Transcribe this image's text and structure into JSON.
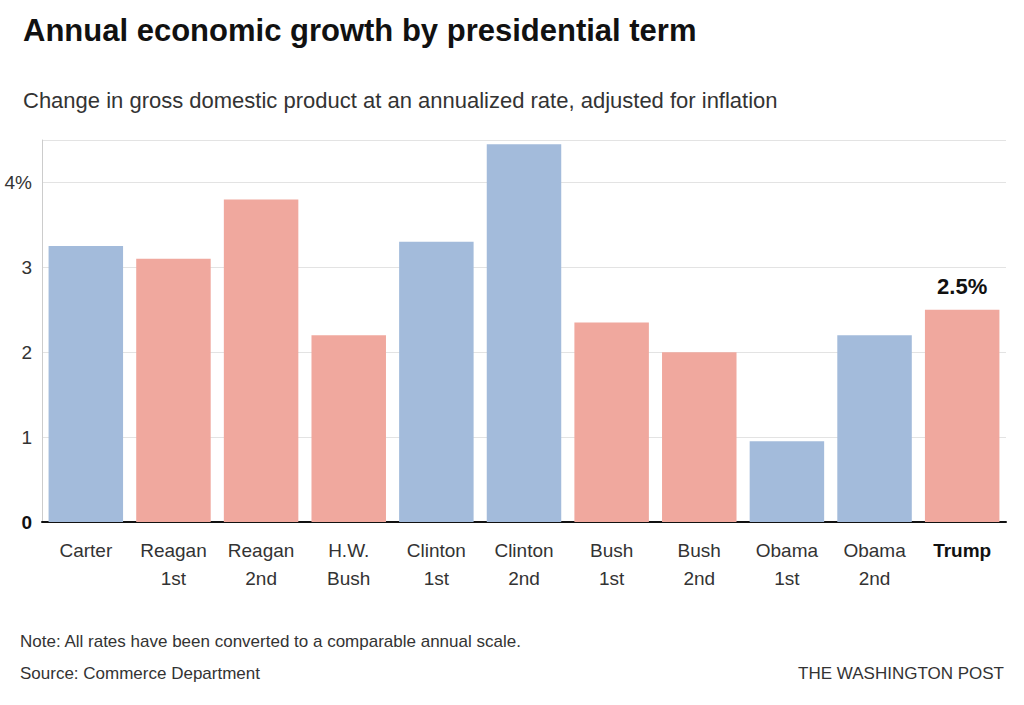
{
  "chart_data": {
    "type": "bar",
    "title": "Annual economic growth by presidential term",
    "subtitle": "Change in gross domestic product at an annualized rate, adjusted for inflation",
    "categories": [
      "Carter",
      "Reagan\n1st",
      "Reagan\n2nd",
      "H.W.\nBush",
      "Clinton\n1st",
      "Clinton\n2nd",
      "Bush\n1st",
      "Bush\n2nd",
      "Obama\n1st",
      "Obama\n2nd",
      "Trump"
    ],
    "values": [
      3.25,
      3.1,
      3.8,
      2.2,
      3.3,
      4.45,
      2.35,
      2.0,
      0.95,
      2.2,
      2.5
    ],
    "value_labels": [
      null,
      null,
      null,
      null,
      null,
      null,
      null,
      null,
      null,
      null,
      "2.5%"
    ],
    "data_labels": true,
    "colors": [
      "#a3bbdb",
      "#f0a89e",
      "#f0a89e",
      "#f0a89e",
      "#a3bbdb",
      "#a3bbdb",
      "#f0a89e",
      "#f0a89e",
      "#a3bbdb",
      "#a3bbdb",
      "#f0a89e"
    ],
    "ylim": [
      0,
      4.5
    ],
    "yticks": [
      0,
      1,
      2,
      3,
      {
        "value": 4,
        "label": "4%"
      }
    ],
    "grid": true,
    "note": "Note: All rates have been converted to a comparable annual scale.",
    "source": "Source: Commerce Department",
    "credit": "THE WASHINGTON POST"
  }
}
